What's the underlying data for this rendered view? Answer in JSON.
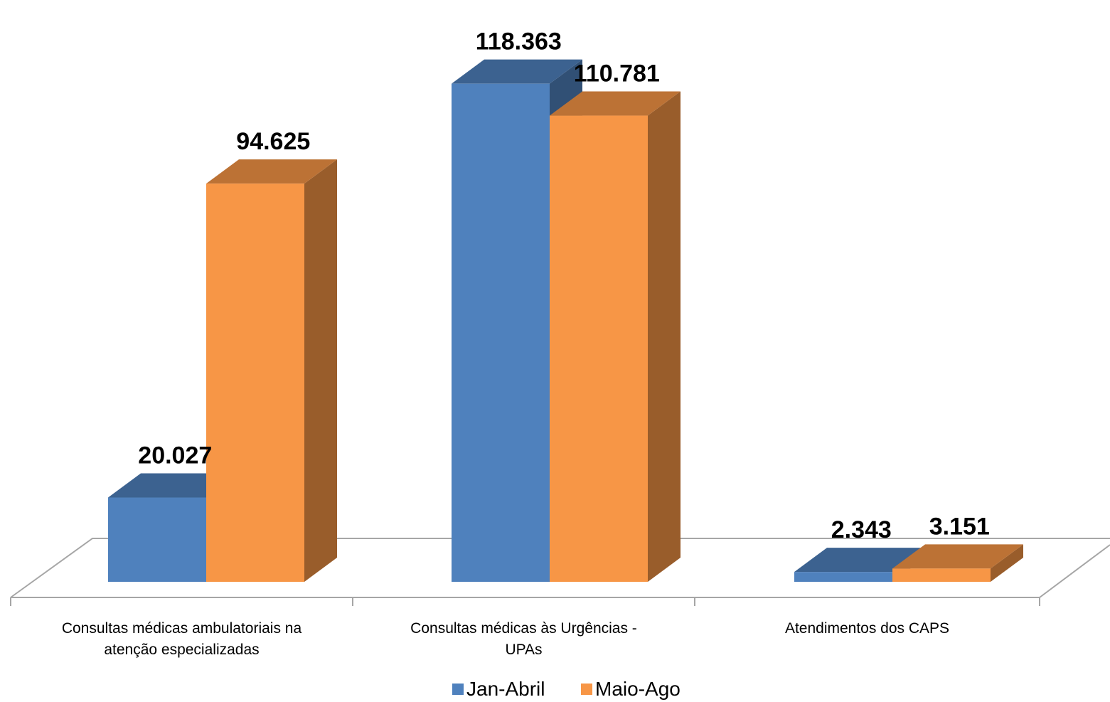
{
  "chart_data": {
    "type": "bar",
    "categories": [
      [
        "Consultas médicas ambulatoriais na",
        "atenção especializadas"
      ],
      [
        "Consultas médicas às Urgências -",
        "UPAs"
      ],
      [
        "Atendimentos dos CAPS"
      ]
    ],
    "series": [
      {
        "name": "Jan-Abril",
        "values": [
          20027,
          118363,
          2343
        ],
        "labels": [
          "20.027",
          "118.363",
          "2.343"
        ],
        "color": "#4f81bd"
      },
      {
        "name": "Maio-Ago",
        "values": [
          94625,
          110781,
          3151
        ],
        "labels": [
          "94.625",
          "110.781",
          "3.151"
        ],
        "color": "#f79646"
      }
    ],
    "ylim": [
      0,
      120000
    ],
    "grid": false,
    "legend_position": "bottom",
    "style": "3d-clustered-column"
  }
}
